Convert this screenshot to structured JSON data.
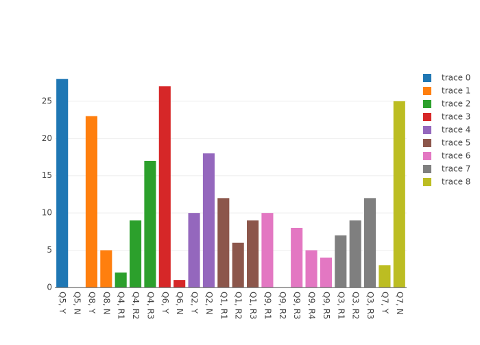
{
  "chart_data": {
    "type": "bar",
    "categories": [
      "Q5, Y",
      "Q5, N",
      "Q8, Y",
      "Q8, N",
      "Q4, R1",
      "Q4, R2",
      "Q4, R3",
      "Q6, Y",
      "Q6, N",
      "Q2, Y",
      "Q2, N",
      "Q1, R1",
      "Q1, R2",
      "Q1, R3",
      "Q9, R1",
      "Q9, R2",
      "Q9, R3",
      "Q9, R4",
      "Q9, R5",
      "Q3, R1",
      "Q3, R2",
      "Q3, R3",
      "Q7, Y",
      "Q7, N"
    ],
    "series": [
      {
        "name": "trace 0",
        "color": "#1f77b4",
        "values": [
          28,
          0,
          null,
          null,
          null,
          null,
          null,
          null,
          null,
          null,
          null,
          null,
          null,
          null,
          null,
          null,
          null,
          null,
          null,
          null,
          null,
          null,
          null,
          null
        ]
      },
      {
        "name": "trace 1",
        "color": "#ff7f0e",
        "values": [
          null,
          null,
          23,
          5,
          null,
          null,
          null,
          null,
          null,
          null,
          null,
          null,
          null,
          null,
          null,
          null,
          null,
          null,
          null,
          null,
          null,
          null,
          null,
          null
        ]
      },
      {
        "name": "trace 2",
        "color": "#2ca02c",
        "values": [
          null,
          null,
          null,
          null,
          2,
          9,
          17,
          null,
          null,
          null,
          null,
          null,
          null,
          null,
          null,
          null,
          null,
          null,
          null,
          null,
          null,
          null,
          null,
          null
        ]
      },
      {
        "name": "trace 3",
        "color": "#d62728",
        "values": [
          null,
          null,
          null,
          null,
          null,
          null,
          null,
          27,
          1,
          null,
          null,
          null,
          null,
          null,
          null,
          null,
          null,
          null,
          null,
          null,
          null,
          null,
          null,
          null
        ]
      },
      {
        "name": "trace 4",
        "color": "#9467bd",
        "values": [
          null,
          null,
          null,
          null,
          null,
          null,
          null,
          null,
          null,
          10,
          18,
          null,
          null,
          null,
          null,
          null,
          null,
          null,
          null,
          null,
          null,
          null,
          null,
          null
        ]
      },
      {
        "name": "trace 5",
        "color": "#8c564b",
        "values": [
          null,
          null,
          null,
          null,
          null,
          null,
          null,
          null,
          null,
          null,
          null,
          12,
          6,
          9,
          null,
          null,
          null,
          null,
          null,
          null,
          null,
          null,
          null,
          null
        ]
      },
      {
        "name": "trace 6",
        "color": "#e377c2",
        "values": [
          null,
          null,
          null,
          null,
          null,
          null,
          null,
          null,
          null,
          null,
          null,
          null,
          null,
          null,
          10,
          0,
          8,
          5,
          4,
          null,
          null,
          null,
          null,
          null
        ]
      },
      {
        "name": "trace 7",
        "color": "#7f7f7f",
        "values": [
          null,
          null,
          null,
          null,
          null,
          null,
          null,
          null,
          null,
          null,
          null,
          null,
          null,
          null,
          null,
          null,
          null,
          null,
          null,
          7,
          9,
          12,
          null,
          null
        ]
      },
      {
        "name": "trace 8",
        "color": "#bcbd22",
        "values": [
          null,
          null,
          null,
          null,
          null,
          null,
          null,
          null,
          null,
          null,
          null,
          null,
          null,
          null,
          null,
          null,
          null,
          null,
          null,
          null,
          null,
          null,
          3,
          25
        ]
      }
    ],
    "ylim": [
      0,
      29.4
    ],
    "yticks": [
      0,
      5,
      10,
      15,
      20,
      25
    ],
    "grid": true
  }
}
